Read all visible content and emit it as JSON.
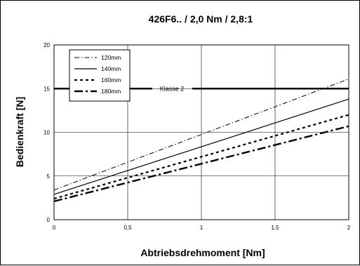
{
  "chart_data": {
    "type": "line",
    "title": "426F6.. / 2,0 Nm / 2,8:1",
    "xlabel": "Abtriebsdrehmoment [Nm]",
    "ylabel": "Bedienkraft [N]",
    "xlim": [
      0,
      2
    ],
    "ylim": [
      0,
      20
    ],
    "x_ticks": [
      0,
      0.5,
      1,
      1.5,
      2
    ],
    "x_tick_labels": [
      "0",
      "0,5",
      "1",
      "1,5",
      "2"
    ],
    "y_ticks": [
      0,
      5,
      10,
      15,
      20
    ],
    "y_tick_labels": [
      "0",
      "5",
      "10",
      "15",
      "20"
    ],
    "grid": true,
    "legend_position": "top-left",
    "series": [
      {
        "name": "120mm",
        "style": "dashdot",
        "x": [
          0,
          2
        ],
        "y": [
          3.4,
          16.1
        ]
      },
      {
        "name": "140mm",
        "style": "solid",
        "x": [
          0,
          2
        ],
        "y": [
          2.9,
          13.8
        ]
      },
      {
        "name": "160mm",
        "style": "dotted",
        "x": [
          0,
          2
        ],
        "y": [
          2.4,
          12.0
        ]
      },
      {
        "name": "180mm",
        "style": "dashdot-bold",
        "x": [
          0,
          2
        ],
        "y": [
          2.1,
          10.7
        ]
      }
    ],
    "annotation": {
      "label": "Klasse 2",
      "y": 15
    }
  }
}
